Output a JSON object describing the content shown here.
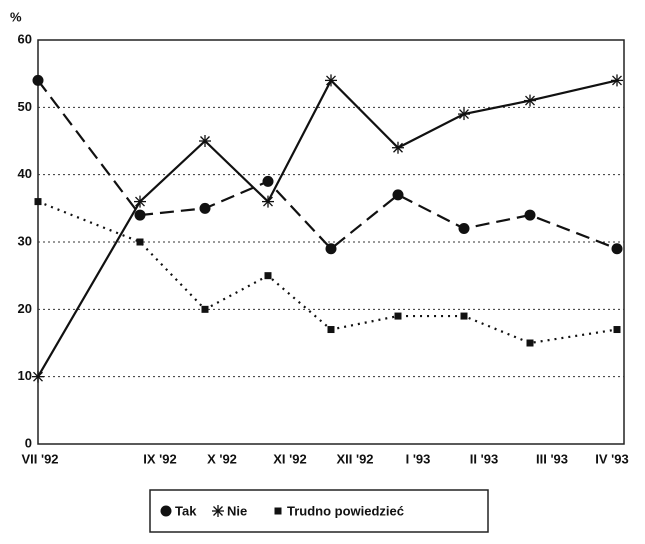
{
  "chart_data": {
    "type": "line",
    "y_label": "%",
    "categories": [
      "VII '92",
      "IX '92",
      "X '92",
      "XI '92",
      "XII '92",
      "I '93",
      "II '93",
      "III '93",
      "IV '93"
    ],
    "series": [
      {
        "name": "Tak",
        "color": "#111111",
        "marker": "circle",
        "dash": "dashed",
        "values": [
          54,
          34,
          35,
          39,
          29,
          37,
          32,
          34,
          29
        ]
      },
      {
        "name": "Nie",
        "color": "#111111",
        "marker": "asterisk",
        "dash": "solid",
        "values": [
          10,
          36,
          45,
          36,
          54,
          44,
          49,
          51,
          54
        ]
      },
      {
        "name": "Trudno powiedzieć",
        "color": "#111111",
        "marker": "square",
        "dash": "dotted",
        "values": [
          36,
          30,
          20,
          25,
          17,
          19,
          19,
          15,
          17
        ]
      }
    ],
    "ylim": [
      0,
      60
    ],
    "yticks": [
      0,
      10,
      20,
      30,
      40,
      50,
      60
    ],
    "grid": true,
    "legend": "bottom"
  }
}
